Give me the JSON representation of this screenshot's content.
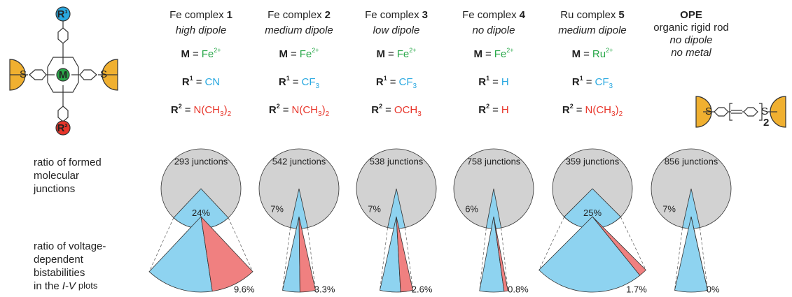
{
  "molecule": {
    "center": "M",
    "r": "R",
    "r1_index": "1",
    "r2_index": "2",
    "sulfur": "S",
    "repeat": "2"
  },
  "labels": {
    "m": "M",
    "r": "R",
    "r1_index": "1",
    "r2_index": "2",
    "equals": "="
  },
  "row_labels": {
    "formed": [
      "ratio of formed",
      "molecular",
      "junctions"
    ],
    "bistable": [
      "ratio of voltage-",
      "dependent",
      "bistabilities"
    ],
    "bistable_last": {
      "prefix": "in the",
      "italic": "I-V",
      "suffix": "plots"
    }
  },
  "columns": [
    {
      "title": "Fe complex",
      "number": "1",
      "dipole": "high dipole",
      "metal": "Fe",
      "charge": "2+",
      "r1": "CN",
      "r2": "N(CH3)2",
      "junctions": "293 junctions",
      "formed": 24,
      "formed_label": "24%",
      "bistable": 9.6,
      "bistable_label": "9.6%"
    },
    {
      "title": "Fe complex",
      "number": "2",
      "dipole": "medium dipole",
      "metal": "Fe",
      "charge": "2+",
      "r1": "CF3",
      "r2": "N(CH3)2",
      "junctions": "542 junctions",
      "formed": 7,
      "formed_label": "7%",
      "bistable": 3.3,
      "bistable_label": "3.3%"
    },
    {
      "title": "Fe complex",
      "number": "3",
      "dipole": "low dipole",
      "metal": "Fe",
      "charge": "2+",
      "r1": "CF3",
      "r2": "OCH3",
      "junctions": "538 junctions",
      "formed": 7,
      "formed_label": "7%",
      "bistable": 2.6,
      "bistable_label": "2.6%"
    },
    {
      "title": "Fe complex",
      "number": "4",
      "dipole": "no dipole",
      "metal": "Fe",
      "charge": "2+",
      "r1": "H",
      "r2": "H",
      "junctions": "758 junctions",
      "formed": 6,
      "formed_label": "6%",
      "bistable": 0.8,
      "bistable_label": "0.8%"
    },
    {
      "title": "Ru complex",
      "number": "5",
      "dipole": "medium dipole",
      "metal": "Ru",
      "charge": "2+",
      "r1": "CF3",
      "r2": "N(CH3)2",
      "junctions": "359 junctions",
      "formed": 25,
      "formed_label": "25%",
      "bistable": 1.7,
      "bistable_label": "1.7%"
    },
    {
      "title": "OPE",
      "description": [
        "organic rigid rod",
        "no dipole",
        "no metal"
      ],
      "junctions": "856 junctions",
      "formed": 7,
      "formed_label": "7%",
      "bistable": 0,
      "bistable_label": "0%"
    }
  ]
}
